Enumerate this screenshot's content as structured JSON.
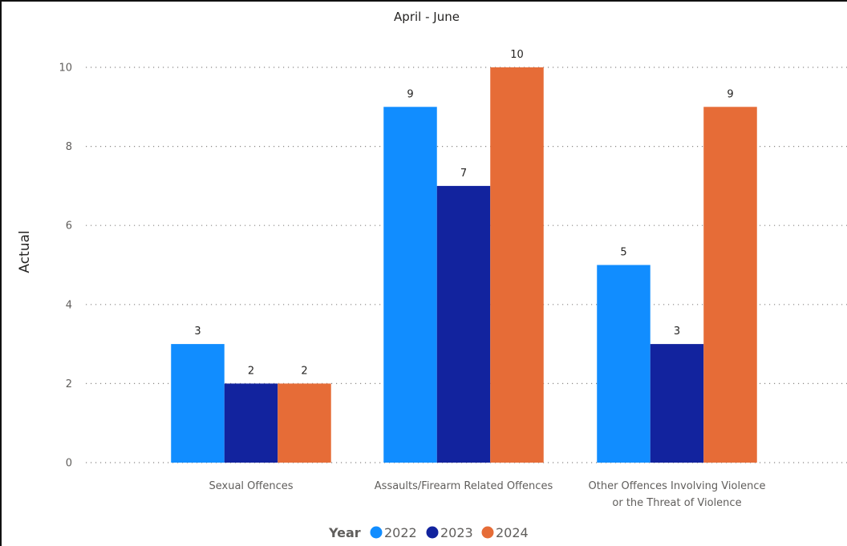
{
  "chart_data": {
    "type": "bar",
    "title": "April - June",
    "xlabel": "",
    "ylabel": "Actual",
    "ylim": [
      0,
      10
    ],
    "yticks": [
      0,
      2,
      4,
      6,
      8,
      10
    ],
    "grid": true,
    "legend": {
      "title": "Year",
      "placement": "bottom-center"
    },
    "categories": [
      [
        "Sexual Offences"
      ],
      [
        "Assaults/Firearm Related Offences"
      ],
      [
        "Other Offences Involving Violence",
        "or the Threat of Violence"
      ]
    ],
    "series": [
      {
        "name": "2022",
        "color": "#118dff",
        "values": [
          3,
          9,
          5
        ]
      },
      {
        "name": "2023",
        "color": "#12239e",
        "values": [
          2,
          7,
          3
        ]
      },
      {
        "name": "2024",
        "color": "#e66c37",
        "values": [
          2,
          10,
          9
        ]
      }
    ]
  }
}
